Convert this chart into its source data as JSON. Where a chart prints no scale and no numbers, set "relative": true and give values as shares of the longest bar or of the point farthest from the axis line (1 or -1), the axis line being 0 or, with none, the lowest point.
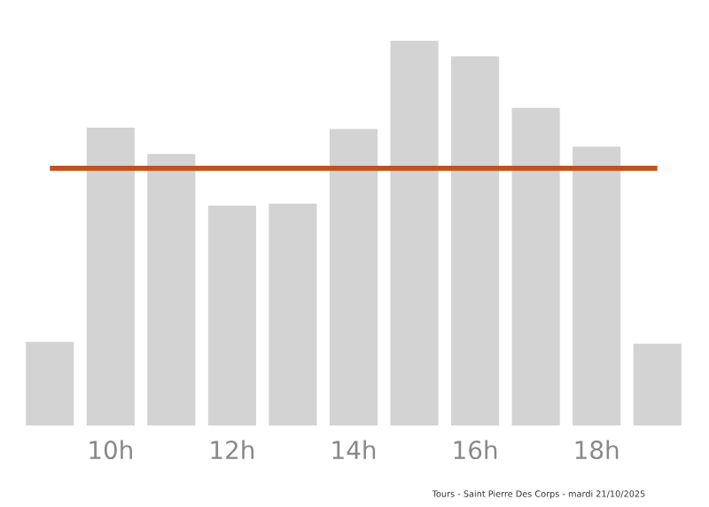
{
  "chart_data": {
    "type": "bar",
    "relative": true,
    "categories": [
      null,
      "10h",
      null,
      "12h",
      null,
      "14h",
      null,
      "16h",
      null,
      "18h",
      null
    ],
    "values": [
      0.217,
      0.774,
      0.705,
      0.571,
      0.576,
      0.77,
      1,
      0.959,
      0.825,
      0.724,
      0.212
    ],
    "color": "#d3d3d3",
    "ref_lines": [
      {
        "axis": "y",
        "value": 0.668,
        "color": "#c4501c"
      }
    ],
    "annotations": [
      "Tours - Saint Pierre Des Corps - mardi 21/10/2025"
    ],
    "grid": false,
    "legend": false
  }
}
